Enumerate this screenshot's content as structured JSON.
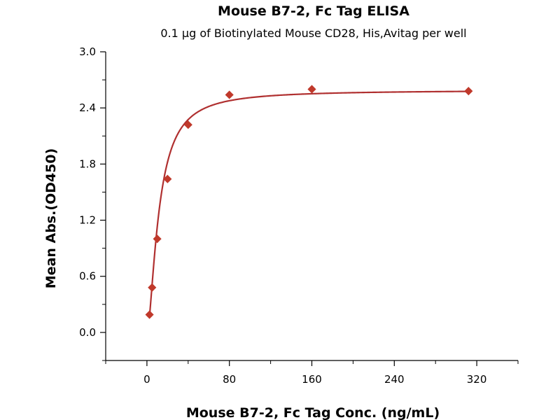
{
  "chart_data": {
    "type": "scatter",
    "title": "Mouse B7-2, Fc Tag ELISA",
    "subtitle": "0.1 μg of Biotinylated Mouse CD28, His,Avitag per well",
    "xlabel": "Mouse B7-2, Fc Tag Conc. (ng/mL)",
    "ylabel": "Mean Abs.(OD450)",
    "xlim": [
      -40,
      360
    ],
    "ylim": [
      -0.3,
      3.0
    ],
    "xticks": [
      0,
      80,
      160,
      240,
      320
    ],
    "yticks": [
      0.0,
      0.6,
      1.2,
      1.8,
      2.4,
      3.0
    ],
    "xtick_labels": [
      "0",
      "80",
      "160",
      "240",
      "320"
    ],
    "ytick_labels": [
      "0.0",
      "0.6",
      "1.2",
      "1.8",
      "2.4",
      "3.0"
    ],
    "grid": false,
    "series": [
      {
        "x": [
          2.5,
          5,
          10,
          20,
          40,
          80,
          160,
          312
        ],
        "y": [
          0.19,
          0.48,
          1.0,
          1.64,
          2.22,
          2.54,
          2.6,
          2.58
        ],
        "marker": "diamond",
        "color": "#c0392b",
        "fit": "4PL",
        "fit_color": "#b03030"
      }
    ]
  }
}
